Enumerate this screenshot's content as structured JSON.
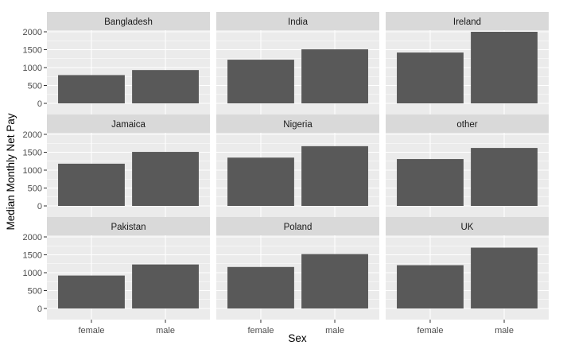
{
  "chart_data": {
    "type": "bar",
    "xlabel": "Sex",
    "ylabel": "Median Monthly Net Pay",
    "ylim": [
      0,
      2100
    ],
    "yticks": [
      0,
      500,
      1000,
      1500,
      2000
    ],
    "categories": [
      "female",
      "male"
    ],
    "grid": true,
    "facets": [
      {
        "name": "Bangladesh",
        "values": [
          790,
          930
        ]
      },
      {
        "name": "India",
        "values": [
          1220,
          1510
        ]
      },
      {
        "name": "Ireland",
        "values": [
          1420,
          2000
        ]
      },
      {
        "name": "Jamaica",
        "values": [
          1180,
          1510
        ]
      },
      {
        "name": "Nigeria",
        "values": [
          1350,
          1670
        ]
      },
      {
        "name": "other",
        "values": [
          1310,
          1620
        ]
      },
      {
        "name": "Pakistan",
        "values": [
          920,
          1230
        ]
      },
      {
        "name": "Poland",
        "values": [
          1160,
          1520
        ]
      },
      {
        "name": "UK",
        "values": [
          1210,
          1700
        ]
      }
    ]
  },
  "colors": {
    "panel_bg": "#ebebeb",
    "grid_major": "#ffffff",
    "strip_bg": "#d9d9d9",
    "bar_fill": "#595959",
    "tick_text": "#4d4d4d"
  }
}
